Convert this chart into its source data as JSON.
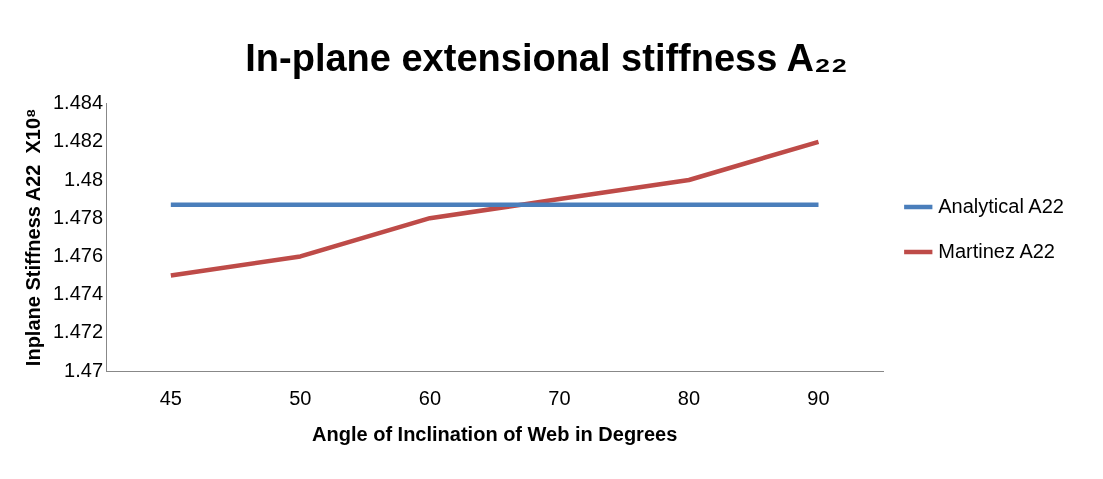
{
  "chart_data": {
    "type": "line",
    "title": "In-plane extensional stiffness A₂₂",
    "xlabel": "Angle of Inclination of Web in Degrees",
    "ylabel": "Inplane Stiffness A22  X10⁸",
    "categories": [
      "45",
      "50",
      "60",
      "70",
      "80",
      "90"
    ],
    "series": [
      {
        "name": "Analytical A22",
        "color": "#4a7ebb",
        "values": [
          1.4787,
          1.4787,
          1.4787,
          1.4787,
          1.4787,
          1.4787
        ]
      },
      {
        "name": "Martinez A22",
        "color": "#be4b48",
        "values": [
          1.475,
          1.476,
          1.478,
          1.479,
          1.48,
          1.482
        ]
      }
    ],
    "ylim": [
      1.47,
      1.484
    ],
    "yticks": [
      1.47,
      1.472,
      1.474,
      1.476,
      1.478,
      1.48,
      1.482,
      1.484
    ],
    "grid": false,
    "legend": "right",
    "marker": "none",
    "line_style": "solid"
  }
}
